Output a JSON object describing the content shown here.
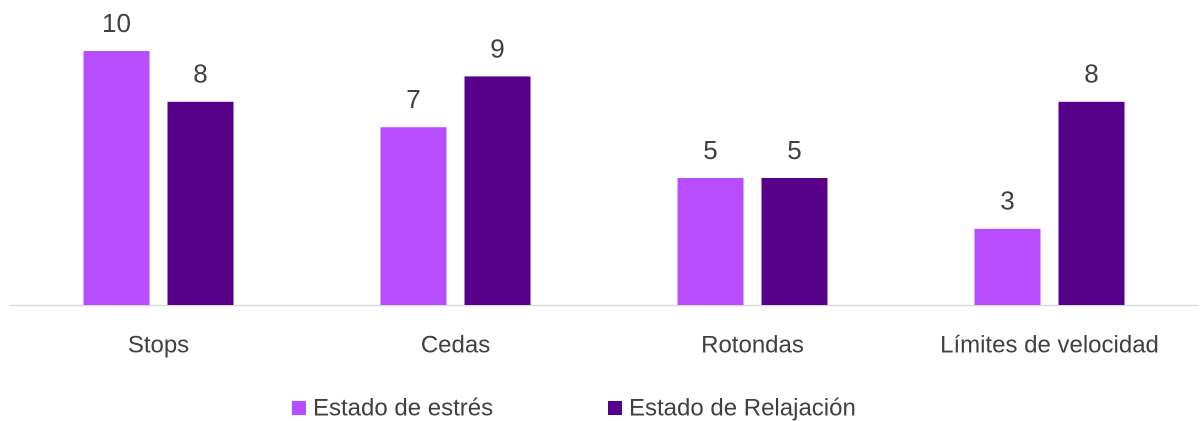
{
  "chart_data": {
    "type": "bar",
    "categories": [
      "Stops",
      "Cedas",
      "Rotondas",
      "Límites de velocidad"
    ],
    "series": [
      {
        "name": "Estado de estrés",
        "color": "#b84dff",
        "values": [
          10,
          7,
          5,
          3
        ]
      },
      {
        "name": "Estado de Relajación",
        "color": "#57008a",
        "values": [
          8,
          9,
          5,
          8
        ]
      }
    ],
    "ylim": [
      0,
      10
    ]
  }
}
